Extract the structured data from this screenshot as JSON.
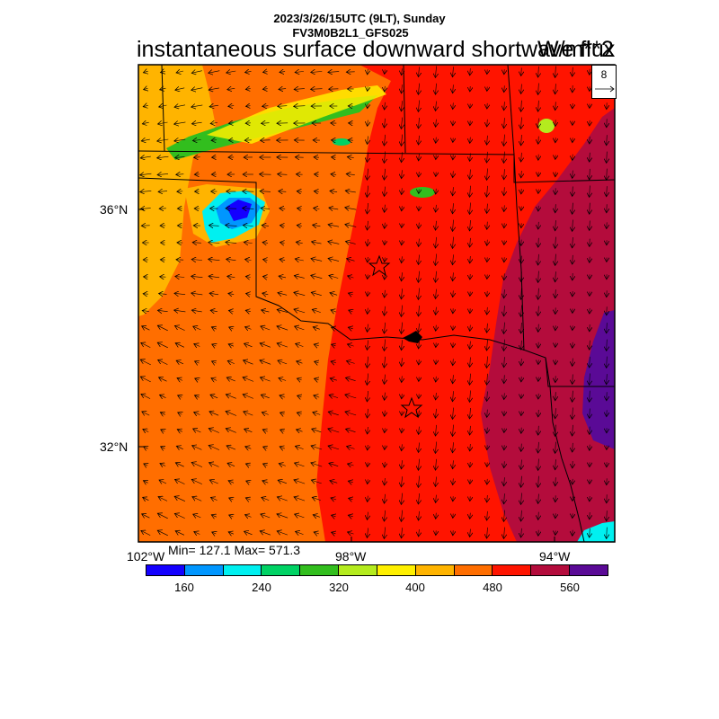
{
  "header": {
    "line1": "2023/3/26/15UTC (9LT), Sunday",
    "line2": "FV3M0B2L1_GFS025",
    "title": "instantaneous surface downward shortwave flux",
    "units": "W/m**2"
  },
  "map": {
    "lat_labels": [
      "36°N",
      "32°N"
    ],
    "lon_labels": [
      "102°W",
      "98°W",
      "94°W"
    ],
    "min_max": "Min= 127.1 Max= 571.3",
    "vector_ref": "8",
    "field_colors": {
      "lowest": "#0000f0",
      "low": "#00c8f0",
      "mid": "#00d264",
      "yellow": "#fff000",
      "orange_light": "#ffb400",
      "orange": "#ff6e00",
      "red": "#ff1400",
      "crimson": "#b40c3c",
      "purple": "#5a0a96"
    }
  },
  "colorbar": {
    "colors": [
      "#1400ff",
      "#0096ff",
      "#00f0f0",
      "#00d264",
      "#32be1e",
      "#b4eb1e",
      "#fff000",
      "#ffb400",
      "#ff6e00",
      "#ff1400",
      "#b40c3c",
      "#5a0a96"
    ],
    "tick_labels": [
      "160",
      "240",
      "320",
      "400",
      "480",
      "560"
    ]
  }
}
